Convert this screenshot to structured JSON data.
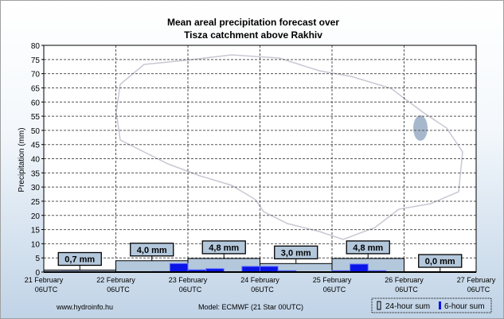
{
  "chart_data": {
    "type": "bar",
    "title": [
      "Mean areal precipitation forecast over",
      "Tisza catchment above Rakhiv"
    ],
    "ylabel": "Precipitation (mm)",
    "ylim": [
      0,
      80
    ],
    "yticks": [
      0,
      5,
      10,
      15,
      20,
      25,
      30,
      35,
      40,
      45,
      50,
      55,
      60,
      65,
      70,
      75,
      80
    ],
    "xticks": [
      [
        "21 February",
        "06UTC"
      ],
      [
        "22 February",
        "06UTC"
      ],
      [
        "23 February",
        "06UTC"
      ],
      [
        "24 February",
        "06UTC"
      ],
      [
        "25 February",
        "06UTC"
      ],
      [
        "26 February",
        "06UTC"
      ],
      [
        "27 February",
        "06UTC"
      ]
    ],
    "grid": true,
    "series": [
      {
        "name": "24-hour sum",
        "values": [
          0.7,
          4.0,
          4.8,
          3.0,
          4.8,
          0.0
        ],
        "labels": [
          "0,7 mm",
          "4,0 mm",
          "4,8 mm",
          "3,0 mm",
          "4,8 mm",
          "0,0 mm"
        ]
      },
      {
        "name": "6-hour sum",
        "values": [
          0,
          0.2,
          0,
          0,
          0,
          0,
          0.2,
          3.0,
          0.8,
          1.2,
          0,
          2.0,
          2.0,
          0.5,
          0,
          0,
          0.5,
          2.8,
          0.5,
          0,
          0,
          0,
          0,
          0
        ]
      }
    ],
    "legend": "bottom-right"
  },
  "footer": {
    "site": "www.hydroinfo.hu",
    "model": "Model: ECMWF (21  Star 00UTC)"
  },
  "colors": {
    "box": "#b4c8dc",
    "bar": "#0a14e6"
  }
}
